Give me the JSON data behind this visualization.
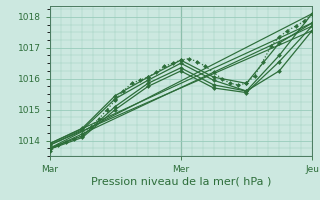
{
  "bg_color": "#cce8e0",
  "grid_color": "#99ccbb",
  "line_color": "#2d6e3a",
  "xlabel": "Pression niveau de la mer( hPa )",
  "xlabel_fontsize": 8,
  "ylim": [
    1013.5,
    1018.35
  ],
  "yticks": [
    1014,
    1015,
    1016,
    1017,
    1018
  ],
  "xtick_labels": [
    "Mar",
    "Mer",
    "Jeu"
  ],
  "xtick_positions": [
    0,
    48,
    96
  ],
  "series": [
    {
      "x": [
        0,
        3,
        6,
        9,
        12,
        15,
        18,
        21,
        24,
        27,
        30,
        33,
        36,
        39,
        42,
        45,
        48,
        51,
        54,
        57,
        60,
        63,
        66,
        69,
        72,
        75,
        78,
        81,
        84,
        87,
        90,
        93,
        96
      ],
      "y": [
        1013.65,
        1013.85,
        1013.95,
        1014.05,
        1014.2,
        1014.45,
        1014.7,
        1015.0,
        1015.3,
        1015.6,
        1015.85,
        1015.95,
        1016.05,
        1016.2,
        1016.4,
        1016.5,
        1016.6,
        1016.65,
        1016.55,
        1016.4,
        1016.2,
        1016.0,
        1015.85,
        1015.8,
        1015.85,
        1016.1,
        1016.55,
        1017.05,
        1017.35,
        1017.55,
        1017.7,
        1017.85,
        1018.1
      ],
      "style": "dotted",
      "marker": "D",
      "markersize": 2.0,
      "linewidth": 0.9
    },
    {
      "x": [
        0,
        12,
        24,
        36,
        48,
        60,
        72,
        84,
        96
      ],
      "y": [
        1013.9,
        1014.4,
        1015.45,
        1016.05,
        1016.6,
        1016.05,
        1015.85,
        1017.15,
        1017.8
      ],
      "style": "solid",
      "marker": "D",
      "markersize": 2.0,
      "linewidth": 0.9
    },
    {
      "x": [
        0,
        12,
        24,
        36,
        48,
        60,
        72,
        84,
        96
      ],
      "y": [
        1013.85,
        1014.35,
        1015.35,
        1015.95,
        1016.5,
        1015.95,
        1015.6,
        1016.25,
        1017.55
      ],
      "style": "solid",
      "marker": "D",
      "markersize": 2.0,
      "linewidth": 0.9
    },
    {
      "x": [
        0,
        12,
        24,
        36,
        48,
        60,
        72,
        84,
        96
      ],
      "y": [
        1013.75,
        1014.15,
        1015.1,
        1015.85,
        1016.35,
        1015.8,
        1015.6,
        1016.75,
        1018.1
      ],
      "style": "solid",
      "marker": "D",
      "markersize": 2.0,
      "linewidth": 0.9
    },
    {
      "x": [
        0,
        12,
        24,
        36,
        48,
        60,
        72,
        84,
        96
      ],
      "y": [
        1013.72,
        1014.1,
        1015.0,
        1015.75,
        1016.25,
        1015.7,
        1015.55,
        1016.55,
        1017.7
      ],
      "style": "solid",
      "marker": "D",
      "markersize": 2.0,
      "linewidth": 0.9
    },
    {
      "x": [
        0,
        96
      ],
      "y": [
        1013.9,
        1017.8
      ],
      "style": "solid",
      "marker": null,
      "linewidth": 0.85
    },
    {
      "x": [
        0,
        96
      ],
      "y": [
        1013.85,
        1017.55
      ],
      "style": "solid",
      "marker": null,
      "linewidth": 0.85
    },
    {
      "x": [
        0,
        96
      ],
      "y": [
        1013.75,
        1018.1
      ],
      "style": "solid",
      "marker": null,
      "linewidth": 0.85
    },
    {
      "x": [
        0,
        96
      ],
      "y": [
        1013.72,
        1017.7
      ],
      "style": "solid",
      "marker": null,
      "linewidth": 0.85
    }
  ]
}
